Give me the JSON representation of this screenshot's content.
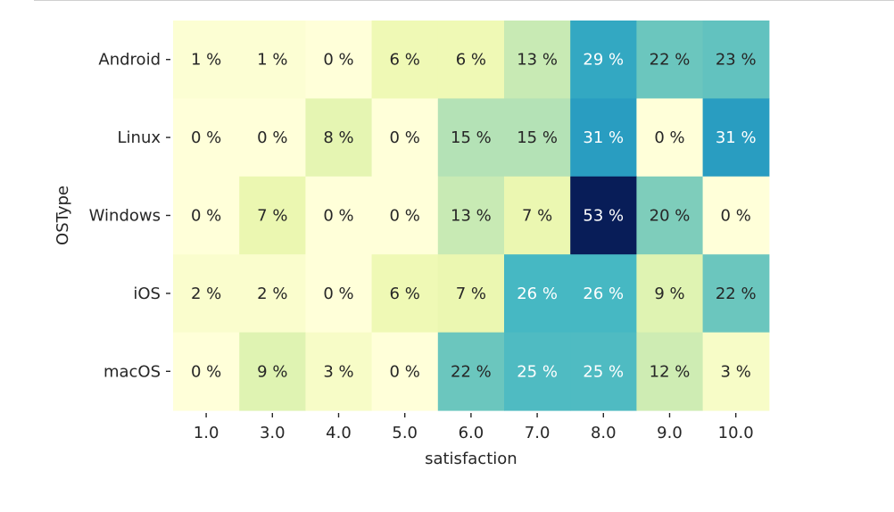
{
  "chart_data": {
    "type": "heatmap",
    "title": "",
    "xlabel": "satisfaction",
    "ylabel": "OSType",
    "x_categories": [
      "1.0",
      "3.0",
      "4.0",
      "5.0",
      "6.0",
      "7.0",
      "8.0",
      "9.0",
      "10.0"
    ],
    "y_categories": [
      "Android",
      "Linux",
      "Windows",
      "iOS",
      "macOS"
    ],
    "values": [
      [
        1,
        1,
        0,
        6,
        6,
        13,
        29,
        22,
        23
      ],
      [
        0,
        0,
        8,
        0,
        15,
        15,
        31,
        0,
        31
      ],
      [
        0,
        7,
        0,
        0,
        13,
        7,
        53,
        20,
        0
      ],
      [
        2,
        2,
        0,
        6,
        7,
        26,
        26,
        9,
        22
      ],
      [
        0,
        9,
        3,
        0,
        22,
        25,
        25,
        12,
        3
      ]
    ],
    "value_unit": "%",
    "colormap": "YlGnBu",
    "color_range": [
      0,
      53
    ],
    "colorbar": false,
    "grid": false,
    "text_colors": {
      "dark": "#262626",
      "light": "#ffffff"
    }
  }
}
